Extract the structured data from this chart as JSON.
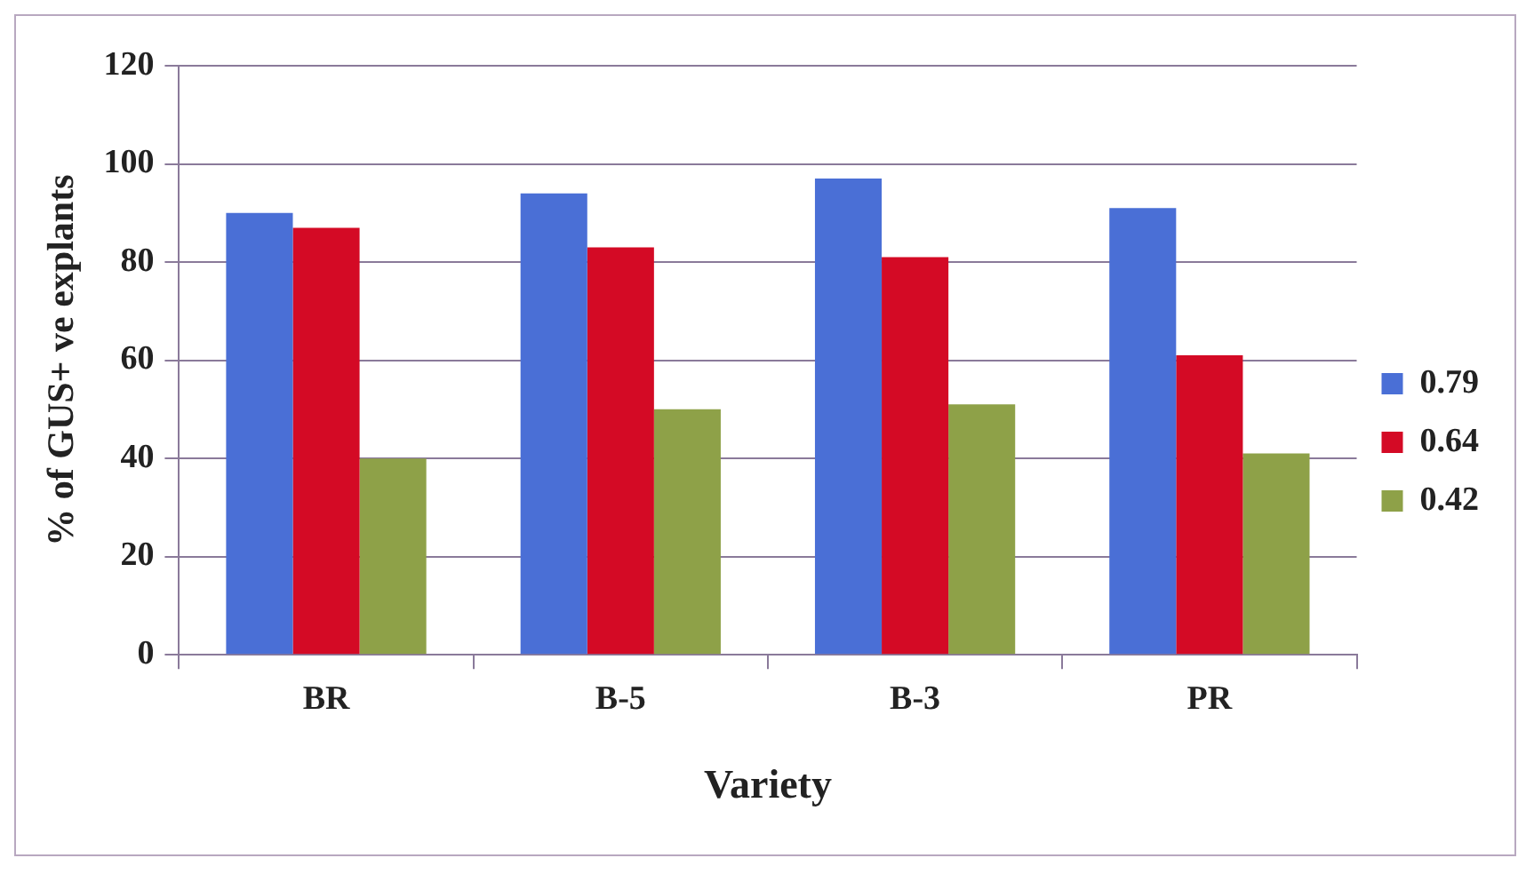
{
  "chart_data": {
    "type": "bar",
    "xlabel": "Variety",
    "ylabel": "% of GUS+ ve explants",
    "categories": [
      "BR",
      "B-5",
      "B-3",
      "PR"
    ],
    "series": [
      {
        "name": "0.79",
        "color": "#4a6fd6",
        "values": [
          90,
          94,
          97,
          91
        ]
      },
      {
        "name": "0.64",
        "color": "#d40a25",
        "values": [
          87,
          83,
          81,
          61
        ]
      },
      {
        "name": "0.42",
        "color": "#8ea148",
        "values": [
          40,
          50,
          51,
          41
        ]
      }
    ],
    "ylim": [
      0,
      120
    ],
    "yticks": [
      0,
      20,
      40,
      60,
      80,
      100,
      120
    ],
    "grid": "y",
    "legend": "right"
  }
}
